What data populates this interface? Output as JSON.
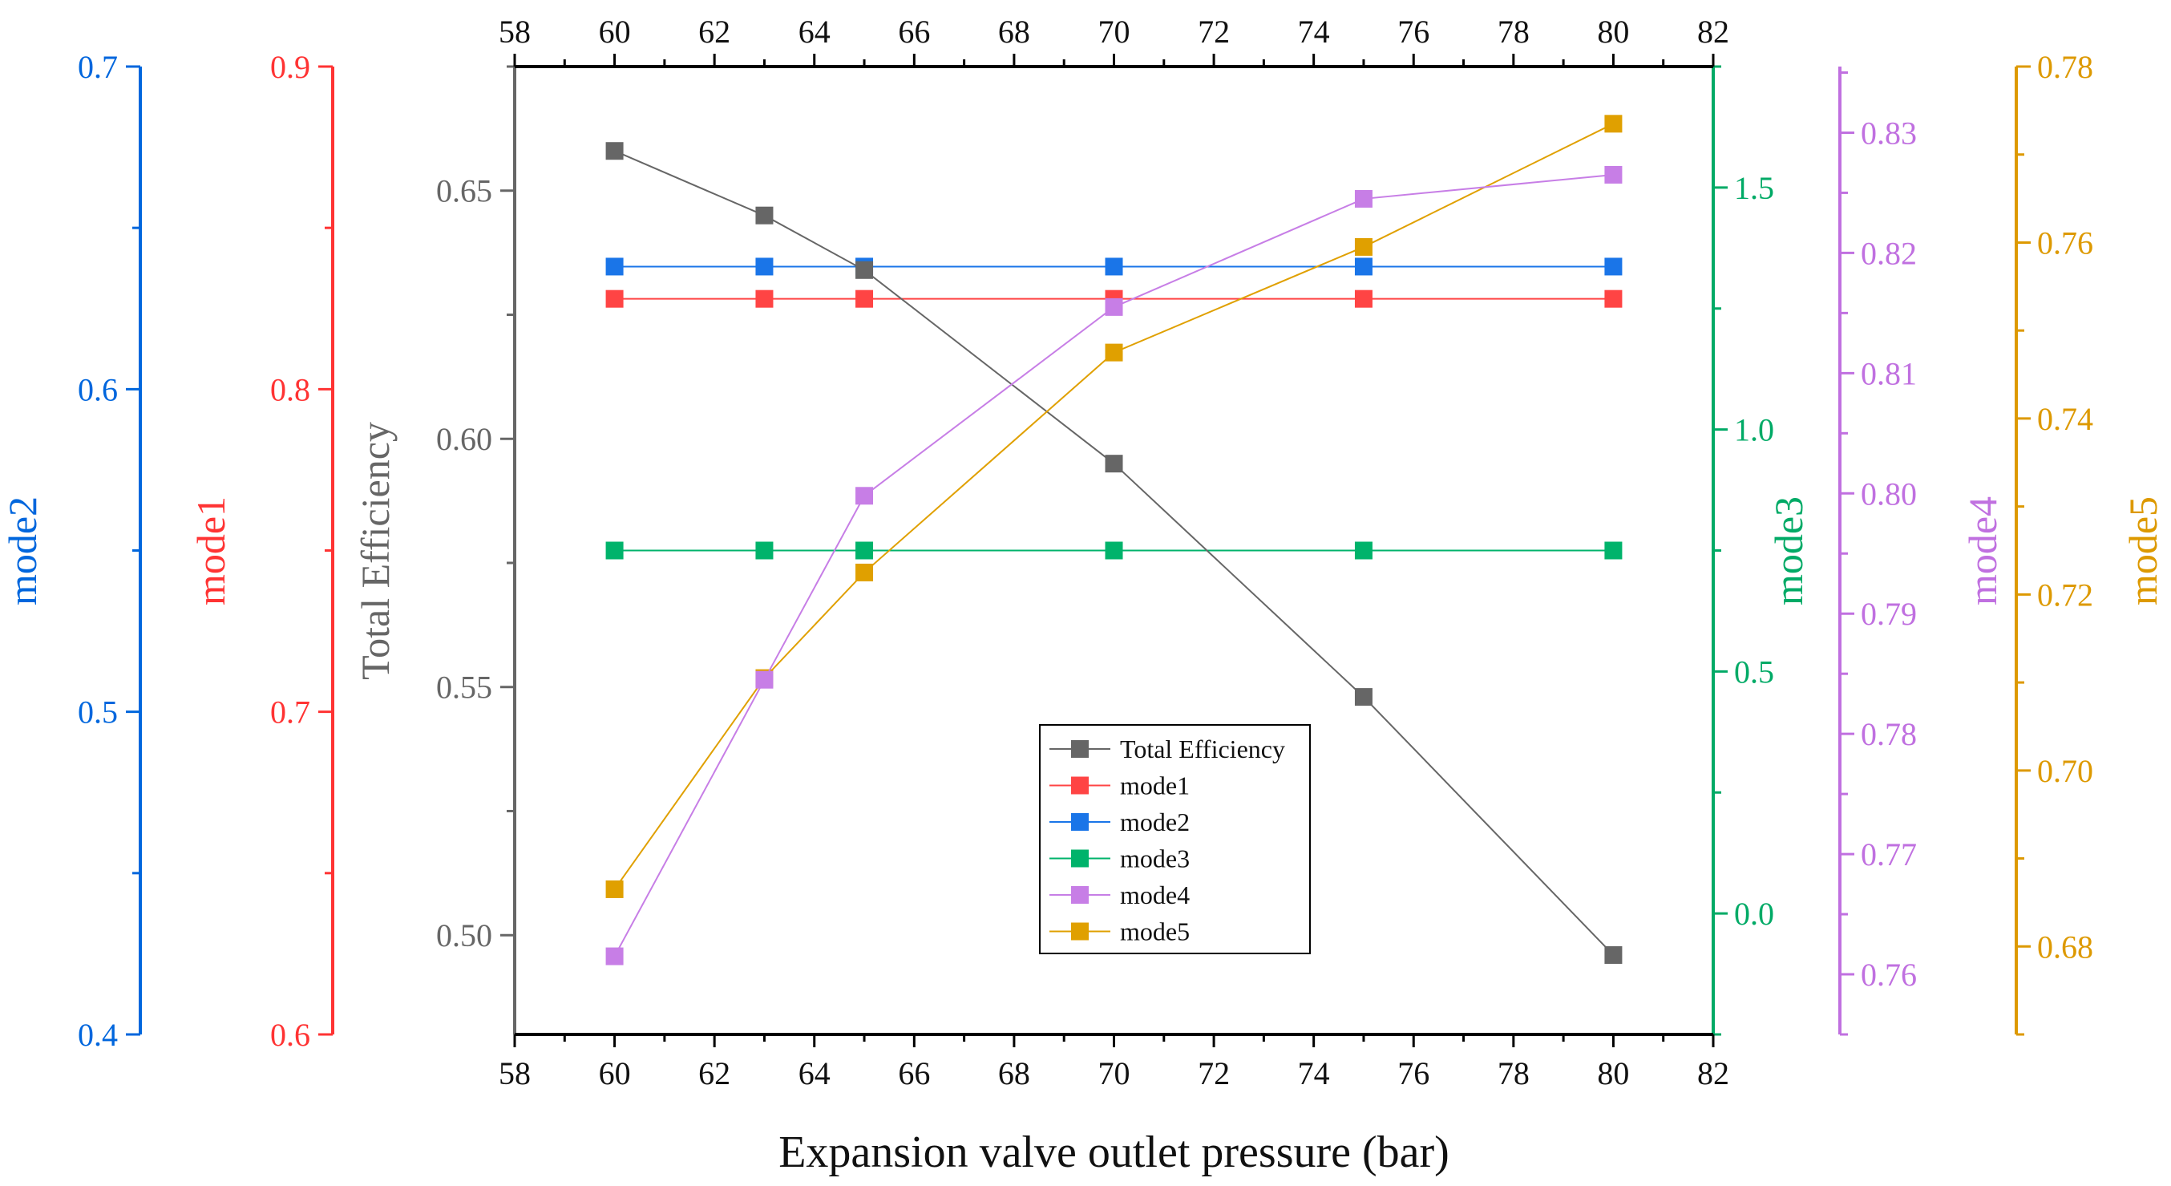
{
  "chart_data": {
    "type": "line",
    "xlabel": "Expansion valve outlet pressure (bar)",
    "xlim": [
      58,
      82
    ],
    "xticks": [
      58,
      60,
      62,
      64,
      66,
      68,
      70,
      72,
      74,
      76,
      78,
      80,
      82
    ],
    "x": [
      60,
      63,
      65,
      70,
      75,
      80
    ],
    "grid": false,
    "legend_position": "bottom-center",
    "axes": [
      {
        "id": "total",
        "label": "Total Efficiency",
        "color": "#666666",
        "ylim": [
          0.48,
          0.675
        ],
        "ticks": [
          0.5,
          0.55,
          0.6,
          0.65
        ],
        "decimals": 2
      },
      {
        "id": "mode1",
        "label": "mode1",
        "color": "#ff3333",
        "ylim": [
          0.6,
          0.9
        ],
        "ticks": [
          0.6,
          0.7,
          0.8,
          0.9
        ],
        "decimals": 1
      },
      {
        "id": "mode2",
        "label": "mode2",
        "color": "#0066dd",
        "ylim": [
          0.4,
          0.7
        ],
        "ticks": [
          0.4,
          0.5,
          0.6,
          0.7
        ],
        "decimals": 1
      },
      {
        "id": "mode3",
        "label": "mode3",
        "color": "#00aa66",
        "ylim": [
          -0.25,
          1.75
        ],
        "ticks": [
          0.0,
          0.5,
          1.0,
          1.5
        ],
        "decimals": 1
      },
      {
        "id": "mode4",
        "label": "mode4",
        "color": "#c070e0",
        "ylim": [
          0.755,
          0.8355
        ],
        "ticks": [
          0.76,
          0.77,
          0.78,
          0.79,
          0.8,
          0.81,
          0.82,
          0.83
        ],
        "decimals": 2
      },
      {
        "id": "mode5",
        "label": "mode5",
        "color": "#dd9900",
        "ylim": [
          0.67,
          0.78
        ],
        "ticks": [
          0.68,
          0.7,
          0.72,
          0.74,
          0.76,
          0.78
        ],
        "decimals": 2
      }
    ],
    "series": [
      {
        "name": "Total Efficiency",
        "axis": "total",
        "color": "#666666",
        "values": [
          0.658,
          0.645,
          0.634,
          0.595,
          0.548,
          0.496
        ]
      },
      {
        "name": "mode1",
        "axis": "mode1",
        "color": "#ff4444",
        "values": [
          0.828,
          0.828,
          0.828,
          0.828,
          0.828,
          0.828
        ]
      },
      {
        "name": "mode2",
        "axis": "mode2",
        "color": "#1a75e8",
        "values": [
          0.638,
          0.638,
          0.638,
          0.638,
          0.638,
          0.638
        ]
      },
      {
        "name": "mode3",
        "axis": "mode3",
        "color": "#00b36b",
        "values": [
          0.75,
          0.75,
          0.75,
          0.75,
          0.75,
          0.75
        ]
      },
      {
        "name": "mode4",
        "axis": "mode4",
        "color": "#c77ee6",
        "values": [
          0.7615,
          0.7845,
          0.7998,
          0.8155,
          0.8245,
          0.8265
        ]
      },
      {
        "name": "mode5",
        "axis": "mode5",
        "color": "#e0a000",
        "values": [
          0.6865,
          0.7105,
          0.7225,
          0.7475,
          0.7595,
          0.7735
        ]
      }
    ]
  }
}
